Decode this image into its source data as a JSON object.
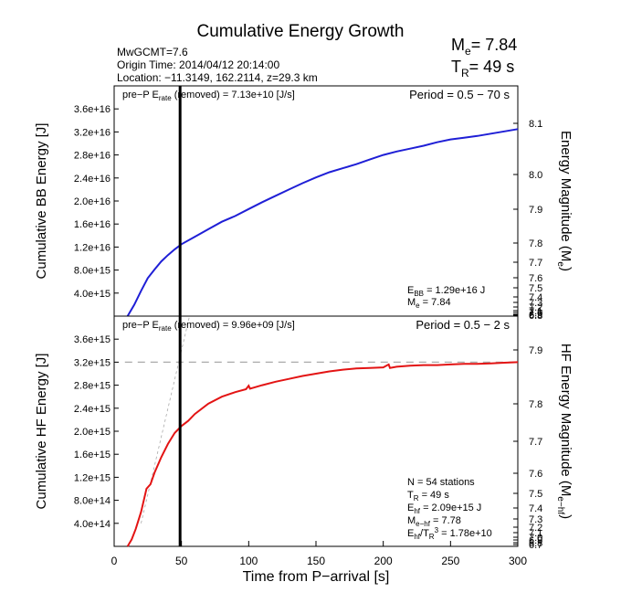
{
  "title": "Cumulative Energy Growth",
  "event": {
    "line1": "MwGCMT=7.6",
    "line2": "Origin Time: 2014/04/12 20:14:00",
    "line3": "Location: −11.3149, 162.2114, z=29.3 km"
  },
  "summary": {
    "me_label": "M",
    "me_sub": "e",
    "me_value": "= 7.84",
    "tr_label": "T",
    "tr_sub": "R",
    "tr_value": "= 49 s"
  },
  "colors": {
    "bb": "#1f1fd6",
    "hf": "#e31414",
    "dash": "#aaaaaa"
  },
  "chart_data": [
    {
      "type": "line",
      "panel": "top",
      "xlabel": "Time from P−arrival [s]",
      "ylabel": "Cumulative BB Energy [J]",
      "y2label": "Energy Magnitude (M",
      "y2label_sub": "e",
      "y2label_end": ")",
      "annotation_left": {
        "pre": "pre−P E",
        "sub": "rate",
        "post": " (removed) = 7.13e+10 [J/s]"
      },
      "period": "Period = 0.5 − 70 s",
      "info": [
        {
          "pre": "E",
          "sub": "BB",
          "post": " = 1.29e+16 J"
        },
        {
          "pre": "M",
          "sub": "e",
          "post": " = 7.84"
        }
      ],
      "xlim": [
        0,
        300
      ],
      "ylim": [
        0,
        4e+16
      ],
      "yticks": [
        {
          "v": 4000000000000000.0,
          "label": "4.0e+15"
        },
        {
          "v": 8000000000000000.0,
          "label": "8.0e+15"
        },
        {
          "v": 1.2e+16,
          "label": "1.2e+16"
        },
        {
          "v": 1.6e+16,
          "label": "1.6e+16"
        },
        {
          "v": 2e+16,
          "label": "2.0e+16"
        },
        {
          "v": 2.4e+16,
          "label": "2.4e+16"
        },
        {
          "v": 2.8e+16,
          "label": "2.8e+16"
        },
        {
          "v": 3.2e+16,
          "label": "3.2e+16"
        },
        {
          "v": 3.6e+16,
          "label": "3.6e+16"
        }
      ],
      "y2ticks_labeled": [
        "8.1",
        "8.0",
        "7.9",
        "7.8",
        "7.7",
        "7.6",
        "7.5",
        "7.4",
        "7.3",
        "7.2",
        "7.1",
        "7.0",
        "6.9",
        "6.8"
      ],
      "series": [
        {
          "x": [
            10,
            15,
            20,
            25,
            30,
            35,
            40,
            45,
            50,
            60,
            70,
            80,
            90,
            100,
            110,
            120,
            130,
            140,
            150,
            160,
            170,
            180,
            190,
            200,
            210,
            220,
            230,
            240,
            250,
            260,
            270,
            280,
            290,
            300
          ],
          "y": [
            0,
            2000000000000000.0,
            4400000000000000.0,
            6600000000000000.0,
            8100000000000000.0,
            9500000000000000.0,
            1.06e+16,
            1.16e+16,
            1.25e+16,
            1.38e+16,
            1.51e+16,
            1.64e+16,
            1.74e+16,
            1.86e+16,
            1.98e+16,
            2.09e+16,
            2.2e+16,
            2.31e+16,
            2.41e+16,
            2.5e+16,
            2.57e+16,
            2.64e+16,
            2.72e+16,
            2.8e+16,
            2.86e+16,
            2.91e+16,
            2.96e+16,
            3.02e+16,
            3.07e+16,
            3.1e+16,
            3.13e+16,
            3.17e+16,
            3.21e+16,
            3.25e+16
          ]
        }
      ]
    },
    {
      "type": "line",
      "panel": "bottom",
      "xlabel": "Time from P−arrival [s]",
      "ylabel": "Cumulative HF Energy [J]",
      "y2label": "HF Energy Magnitude (M",
      "y2label_sub": "e−hf",
      "y2label_end": ")",
      "annotation_left": {
        "pre": "pre−P E",
        "sub": "rate",
        "post": " (removed) = 9.96e+09 [J/s]"
      },
      "period": "Period = 0.5 − 2 s",
      "info": [
        {
          "pre": "N = 54 stations",
          "sub": "",
          "post": ""
        },
        {
          "pre": "T",
          "sub": "R",
          "post": " = 49  s"
        },
        {
          "pre": "E",
          "sub": "hf",
          "post": " = 2.09e+15 J"
        },
        {
          "pre": "M",
          "sub": "e−hf",
          "post": " = 7.78"
        },
        {
          "pre": "E",
          "sub": "hf",
          "post": "/T",
          "sub2": "R",
          "sup": "3",
          "post2": " =  1.78e+10"
        }
      ],
      "xlim": [
        0,
        300
      ],
      "ylim": [
        0,
        4000000000000000.0
      ],
      "yticks": [
        {
          "v": 400000000000000.0,
          "label": "4.0e+14"
        },
        {
          "v": 800000000000000.0,
          "label": "8.0e+14"
        },
        {
          "v": 1200000000000000.0,
          "label": "1.2e+15"
        },
        {
          "v": 1600000000000000.0,
          "label": "1.6e+15"
        },
        {
          "v": 2000000000000000.0,
          "label": "2.0e+15"
        },
        {
          "v": 2400000000000000.0,
          "label": "2.4e+15"
        },
        {
          "v": 2800000000000000.0,
          "label": "2.8e+15"
        },
        {
          "v": 3200000000000000.0,
          "label": "3.2e+15"
        },
        {
          "v": 3600000000000000.0,
          "label": "3.6e+15"
        }
      ],
      "y2ticks_labeled": [
        "7.9",
        "7.8",
        "7.7",
        "7.6",
        "7.5",
        "7.4",
        "7.3",
        "7.2",
        "7.1",
        "7.0",
        "6.9",
        "6.8",
        "6.7"
      ],
      "series": [
        {
          "x": [
            10,
            13,
            16,
            20,
            24,
            27,
            30,
            35,
            40,
            45,
            50,
            55,
            60,
            70,
            80,
            90,
            98,
            100,
            101,
            110,
            120,
            130,
            140,
            150,
            160,
            170,
            180,
            190,
            200,
            204,
            205,
            210,
            220,
            230,
            240,
            250,
            260,
            270,
            280,
            290,
            300
          ],
          "y": [
            0,
            120000000000000.0,
            300000000000000.0,
            600000000000000.0,
            1000000000000000.0,
            1080000000000000.0,
            1280000000000000.0,
            1550000000000000.0,
            1780000000000000.0,
            1970000000000000.0,
            2090000000000000.0,
            2180000000000000.0,
            2300000000000000.0,
            2480000000000000.0,
            2600000000000000.0,
            2680000000000000.0,
            2730000000000000.0,
            2790000000000000.0,
            2740000000000000.0,
            2800000000000000.0,
            2860000000000000.0,
            2910000000000000.0,
            2960000000000000.0,
            3000000000000000.0,
            3040000000000000.0,
            3070000000000000.0,
            3090000000000000.0,
            3100000000000000.0,
            3110000000000000.0,
            3160000000000000.0,
            3100000000000000.0,
            3120000000000000.0,
            3140000000000000.0,
            3150000000000000.0,
            3150000000000000.0,
            3160000000000000.0,
            3170000000000000.0,
            3170000000000000.0,
            3180000000000000.0,
            3190000000000000.0,
            3200000000000000.0
          ]
        }
      ],
      "plateau": 3200000000000000.0
    }
  ],
  "xticks": [
    {
      "v": 0,
      "label": "0"
    },
    {
      "v": 50,
      "label": "50"
    },
    {
      "v": 100,
      "label": "100"
    },
    {
      "v": 150,
      "label": "150"
    },
    {
      "v": 200,
      "label": "200"
    },
    {
      "v": 250,
      "label": "250"
    },
    {
      "v": 300,
      "label": "300"
    }
  ],
  "tr_marker": 49
}
